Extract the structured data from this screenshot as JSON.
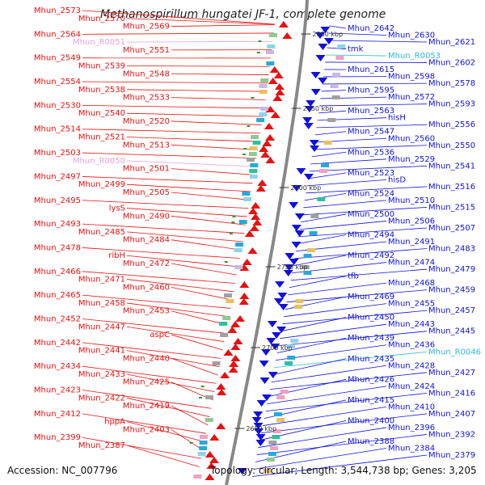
{
  "title": "Methanospirillum hungatei JF-1, complete genome",
  "accession": "Accession: NC_007796",
  "topology": "Topology: circular; Length: 3,544,738 bp; Genes: 3,205",
  "colors": {
    "minus_strand": "#e81010",
    "plus_strand": "#1010e0",
    "rna_minus": "#e8a0d8",
    "rna_plus": "#30b8d8",
    "axis": "#888888",
    "tick": "#339933"
  },
  "scale_ticks": [
    "2900 kbp",
    "2850 kbp",
    "2800 kbp",
    "2750 kbp",
    "2700 kbp",
    "2650 kbp"
  ],
  "left_labels": [
    "Mhun_2573",
    "Mhun_2570",
    "Mhun_2569",
    "Mhun_2564",
    "Mhun_R0051",
    "Mhun_2551",
    "Mhun_2549",
    "Mhun_2539",
    "Mhun_2548",
    "Mhun_2554",
    "Mhun_2538",
    "Mhun_2533",
    "Mhun_2530",
    "Mhun_2540",
    "Mhun_2520",
    "Mhun_2514",
    "Mhun_2521",
    "Mhun_2513",
    "Mhun_2503",
    "Mhun_R0050",
    "Mhun_2501",
    "Mhun_2497",
    "Mhun_2499",
    "Mhun_2505",
    "Mhun_2495",
    "lysS",
    "Mhun_2490",
    "Mhun_2493",
    "Mhun_2485",
    "Mhun_2484",
    "Mhun_2478",
    "ribH",
    "Mhun_2472",
    "Mhun_2466",
    "Mhun_2471",
    "Mhun_2460",
    "Mhun_2465",
    "Mhun_2458",
    "Mhun_2453",
    "Mhun_2452",
    "Mhun_2447",
    "aspC",
    "Mhun_2442",
    "Mhun_2441",
    "Mhun_2440",
    "Mhun_2434",
    "Mhun_2433",
    "Mhun_2425",
    "Mhun_2423",
    "Mhun_2422",
    "Mhun_2419",
    "Mhun_2412",
    "hppA",
    "Mhun_2403",
    "Mhun_2399",
    "Mhun_2387"
  ],
  "right_labels": [
    "Mhun_2642",
    "Mhun_2630",
    "Mhun_2621",
    "tmk",
    "Mhun_R0053",
    "Mhun_2602",
    "Mhun_2615",
    "Mhun_2598",
    "Mhun_2578",
    "Mhun_2595",
    "Mhun_2572",
    "Mhun_2593",
    "Mhun_2563",
    "hisH",
    "Mhun_2556",
    "Mhun_2547",
    "Mhun_2560",
    "Mhun_2550",
    "Mhun_2536",
    "Mhun_2529",
    "Mhun_2541",
    "Mhun_2523",
    "hisD",
    "Mhun_2516",
    "Mhun_2524",
    "Mhun_2510",
    "Mhun_2515",
    "Mhun_2500",
    "Mhun_2506",
    "Mhun_2507",
    "Mhun_2494",
    "Mhun_2491",
    "Mhun_2483",
    "Mhun_2492",
    "Mhun_2474",
    "Mhun_2479",
    "tfb",
    "Mhun_2468",
    "Mhun_2459",
    "Mhun_2469",
    "Mhun_2455",
    "Mhun_2457",
    "Mhun_2450",
    "Mhun_2443",
    "Mhun_2445",
    "Mhun_2439",
    "Mhun_2436",
    "Mhun_R0046",
    "Mhun_2435",
    "Mhun_2428",
    "Mhun_2427",
    "Mhun_2426",
    "Mhun_2424",
    "Mhun_2416",
    "Mhun_2415",
    "Mhun_2410",
    "Mhun_2407",
    "Mhun_2400",
    "Mhun_2396",
    "Mhun_2392",
    "Mhun_2388",
    "Mhun_2384",
    "Mhun_2379"
  ]
}
